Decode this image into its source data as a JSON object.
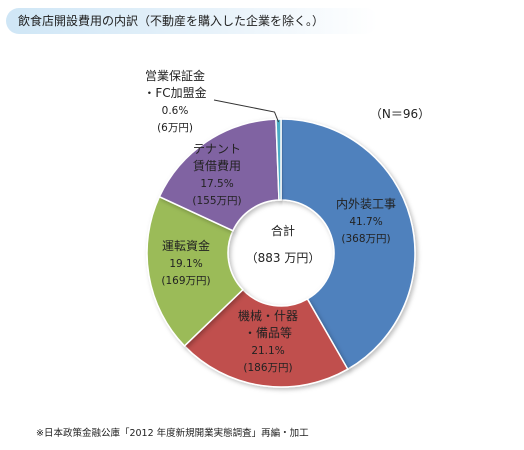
{
  "title": "飲食店開設費用の内訳（不動産を購入した企業を除く。）",
  "n_label": "（N＝96）",
  "footnote": "※日本政策金融公庫「2012 年度新規開業実態調査」再編・加工",
  "center_label": {
    "line1": "合計",
    "line2": "（883 万円）"
  },
  "chart_data": {
    "type": "pie",
    "donut": true,
    "start": "12 o'clock",
    "direction": "clockwise",
    "slices": [
      {
        "label_lines": [
          "内外装工事"
        ],
        "percent": 41.7,
        "percent_text": "41.7%",
        "amount_text": "(368万円)",
        "value": 368,
        "color": "#4f81bd"
      },
      {
        "label_lines": [
          "機械・什器",
          "・備品等"
        ],
        "percent": 21.1,
        "percent_text": "21.1%",
        "amount_text": "(186万円)",
        "value": 186,
        "color": "#c0504d"
      },
      {
        "label_lines": [
          "運転資金"
        ],
        "percent": 19.1,
        "percent_text": "19.1%",
        "amount_text": "(169万円)",
        "value": 169,
        "color": "#9bbb59"
      },
      {
        "label_lines": [
          "テナント",
          "賃借費用"
        ],
        "percent": 17.5,
        "percent_text": "17.5%",
        "amount_text": "(155万円)",
        "value": 155,
        "color": "#8064a2"
      },
      {
        "label_lines": [
          "営業保証金",
          "・FC加盟金"
        ],
        "percent": 0.6,
        "percent_text": "0.6%",
        "amount_text": "(6万円)",
        "value": 6,
        "color": "#4bacc6"
      }
    ]
  }
}
